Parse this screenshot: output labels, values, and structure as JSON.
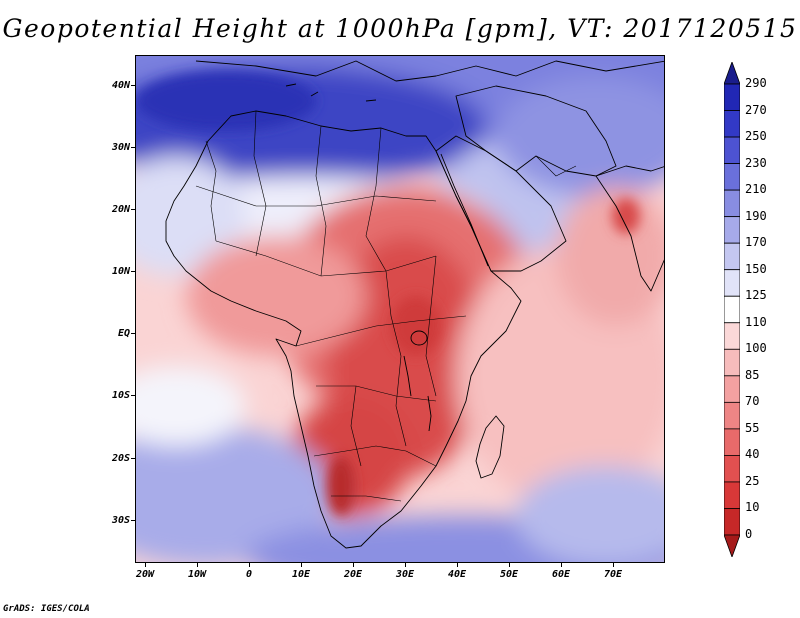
{
  "title": "Geopotential Height at 1000hPa [gpm], VT: 2017120515",
  "credit": "GrADS: IGES/COLA",
  "colors": {
    "land_boundary": "#000000",
    "ocean_default": "#fad2d2"
  },
  "map": {
    "lat_labels": [
      "40N",
      "30N",
      "20N",
      "10N",
      "EQ",
      "10S",
      "20S",
      "30S"
    ],
    "lon_labels": [
      "20W",
      "10W",
      "0",
      "10E",
      "20E",
      "30E",
      "40E",
      "50E",
      "60E",
      "70E"
    ]
  },
  "colorbar": {
    "levels": [
      "0",
      "10",
      "25",
      "40",
      "55",
      "70",
      "85",
      "100",
      "110",
      "125",
      "150",
      "170",
      "190",
      "210",
      "230",
      "250",
      "270",
      "290"
    ],
    "colors": [
      "#a51a1a",
      "#c62828",
      "#d83838",
      "#e25050",
      "#e86a6a",
      "#ee8585",
      "#f3a1a1",
      "#f7bcbc",
      "#fbd8d8",
      "#ffffff",
      "#e1e3f8",
      "#c4c7f1",
      "#a6aaea",
      "#888de2",
      "#6a70db",
      "#4d53d2",
      "#3239c6",
      "#2127b5",
      "#1a1d8c"
    ]
  }
}
